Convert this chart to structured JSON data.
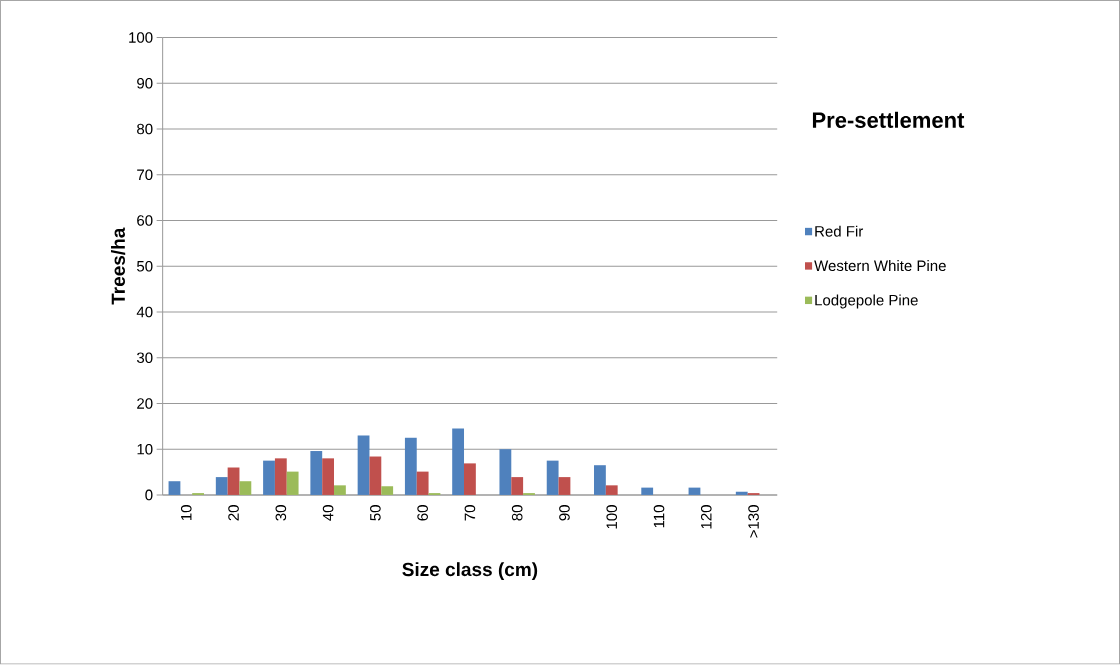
{
  "chart_data": {
    "type": "bar",
    "title": "Pre-settlement",
    "xlabel": "Size class (cm)",
    "ylabel": "Trees/ha",
    "categories": [
      "10",
      "20",
      "30",
      "40",
      "50",
      "60",
      "70",
      "80",
      "90",
      "100",
      "110",
      "120",
      ">130"
    ],
    "series": [
      {
        "name": "Red Fir",
        "color": "#4f81bd",
        "values": [
          3.0,
          3.9,
          7.5,
          9.6,
          13.0,
          12.5,
          14.5,
          10.0,
          7.5,
          6.5,
          1.6,
          1.6,
          0.7
        ]
      },
      {
        "name": "Western White Pine",
        "color": "#c0504d",
        "values": [
          0,
          6.0,
          8.0,
          8.0,
          8.4,
          5.1,
          6.9,
          3.9,
          3.9,
          2.1,
          0,
          0,
          0.4
        ]
      },
      {
        "name": "Lodgepole Pine",
        "color": "#9bbb59",
        "values": [
          0.4,
          3.0,
          5.1,
          2.1,
          1.9,
          0.4,
          0,
          0.4,
          0,
          0,
          0,
          0,
          0
        ]
      }
    ],
    "ylim": [
      0,
      100
    ],
    "yticks": [
      0,
      10,
      20,
      30,
      40,
      50,
      60,
      70,
      80,
      90,
      100
    ],
    "grid": "y",
    "legend": "right"
  }
}
